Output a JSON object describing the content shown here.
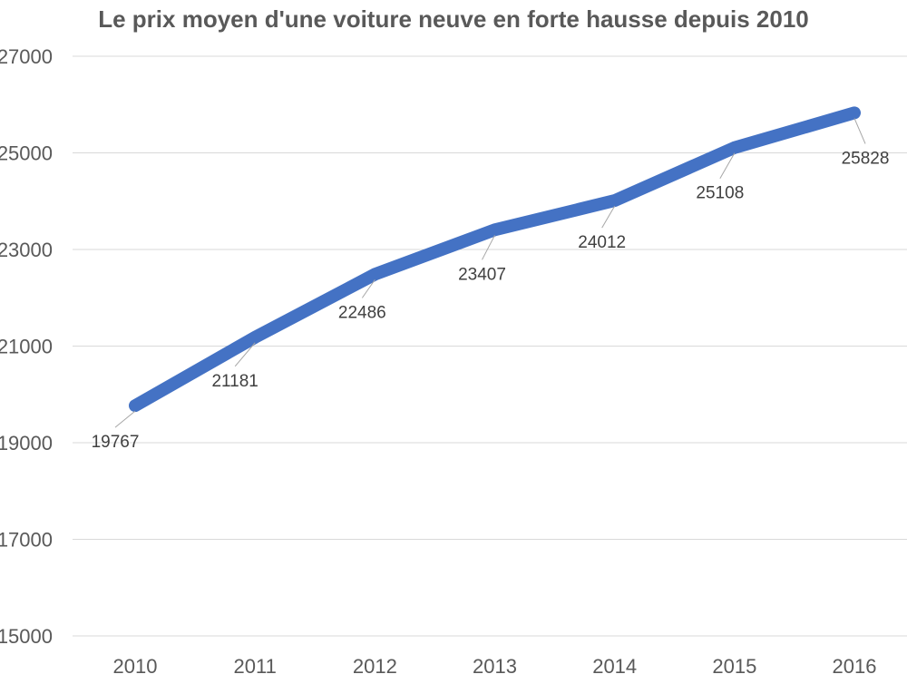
{
  "chart_data": {
    "type": "line",
    "title": "Le prix moyen d'une voiture neuve en forte hausse depuis 2010",
    "xlabel": "",
    "ylabel": "",
    "categories": [
      "2010",
      "2011",
      "2012",
      "2013",
      "2014",
      "2015",
      "2016"
    ],
    "series": [
      {
        "values": [
          19767,
          21181,
          22486,
          23407,
          24012,
          25108,
          25828
        ],
        "color": "#4472c4"
      }
    ],
    "data_labels": [
      "19767",
      "21181",
      "22486",
      "23407",
      "24012",
      "25108",
      "25828"
    ],
    "ylim": [
      15000,
      27000
    ],
    "yticks": [
      15000,
      17000,
      19000,
      21000,
      23000,
      25000,
      27000
    ],
    "ytick_labels": [
      "15000",
      "17000",
      "19000",
      "21000",
      "23000",
      "25000",
      "27000"
    ],
    "grid": true,
    "legend": "none"
  }
}
